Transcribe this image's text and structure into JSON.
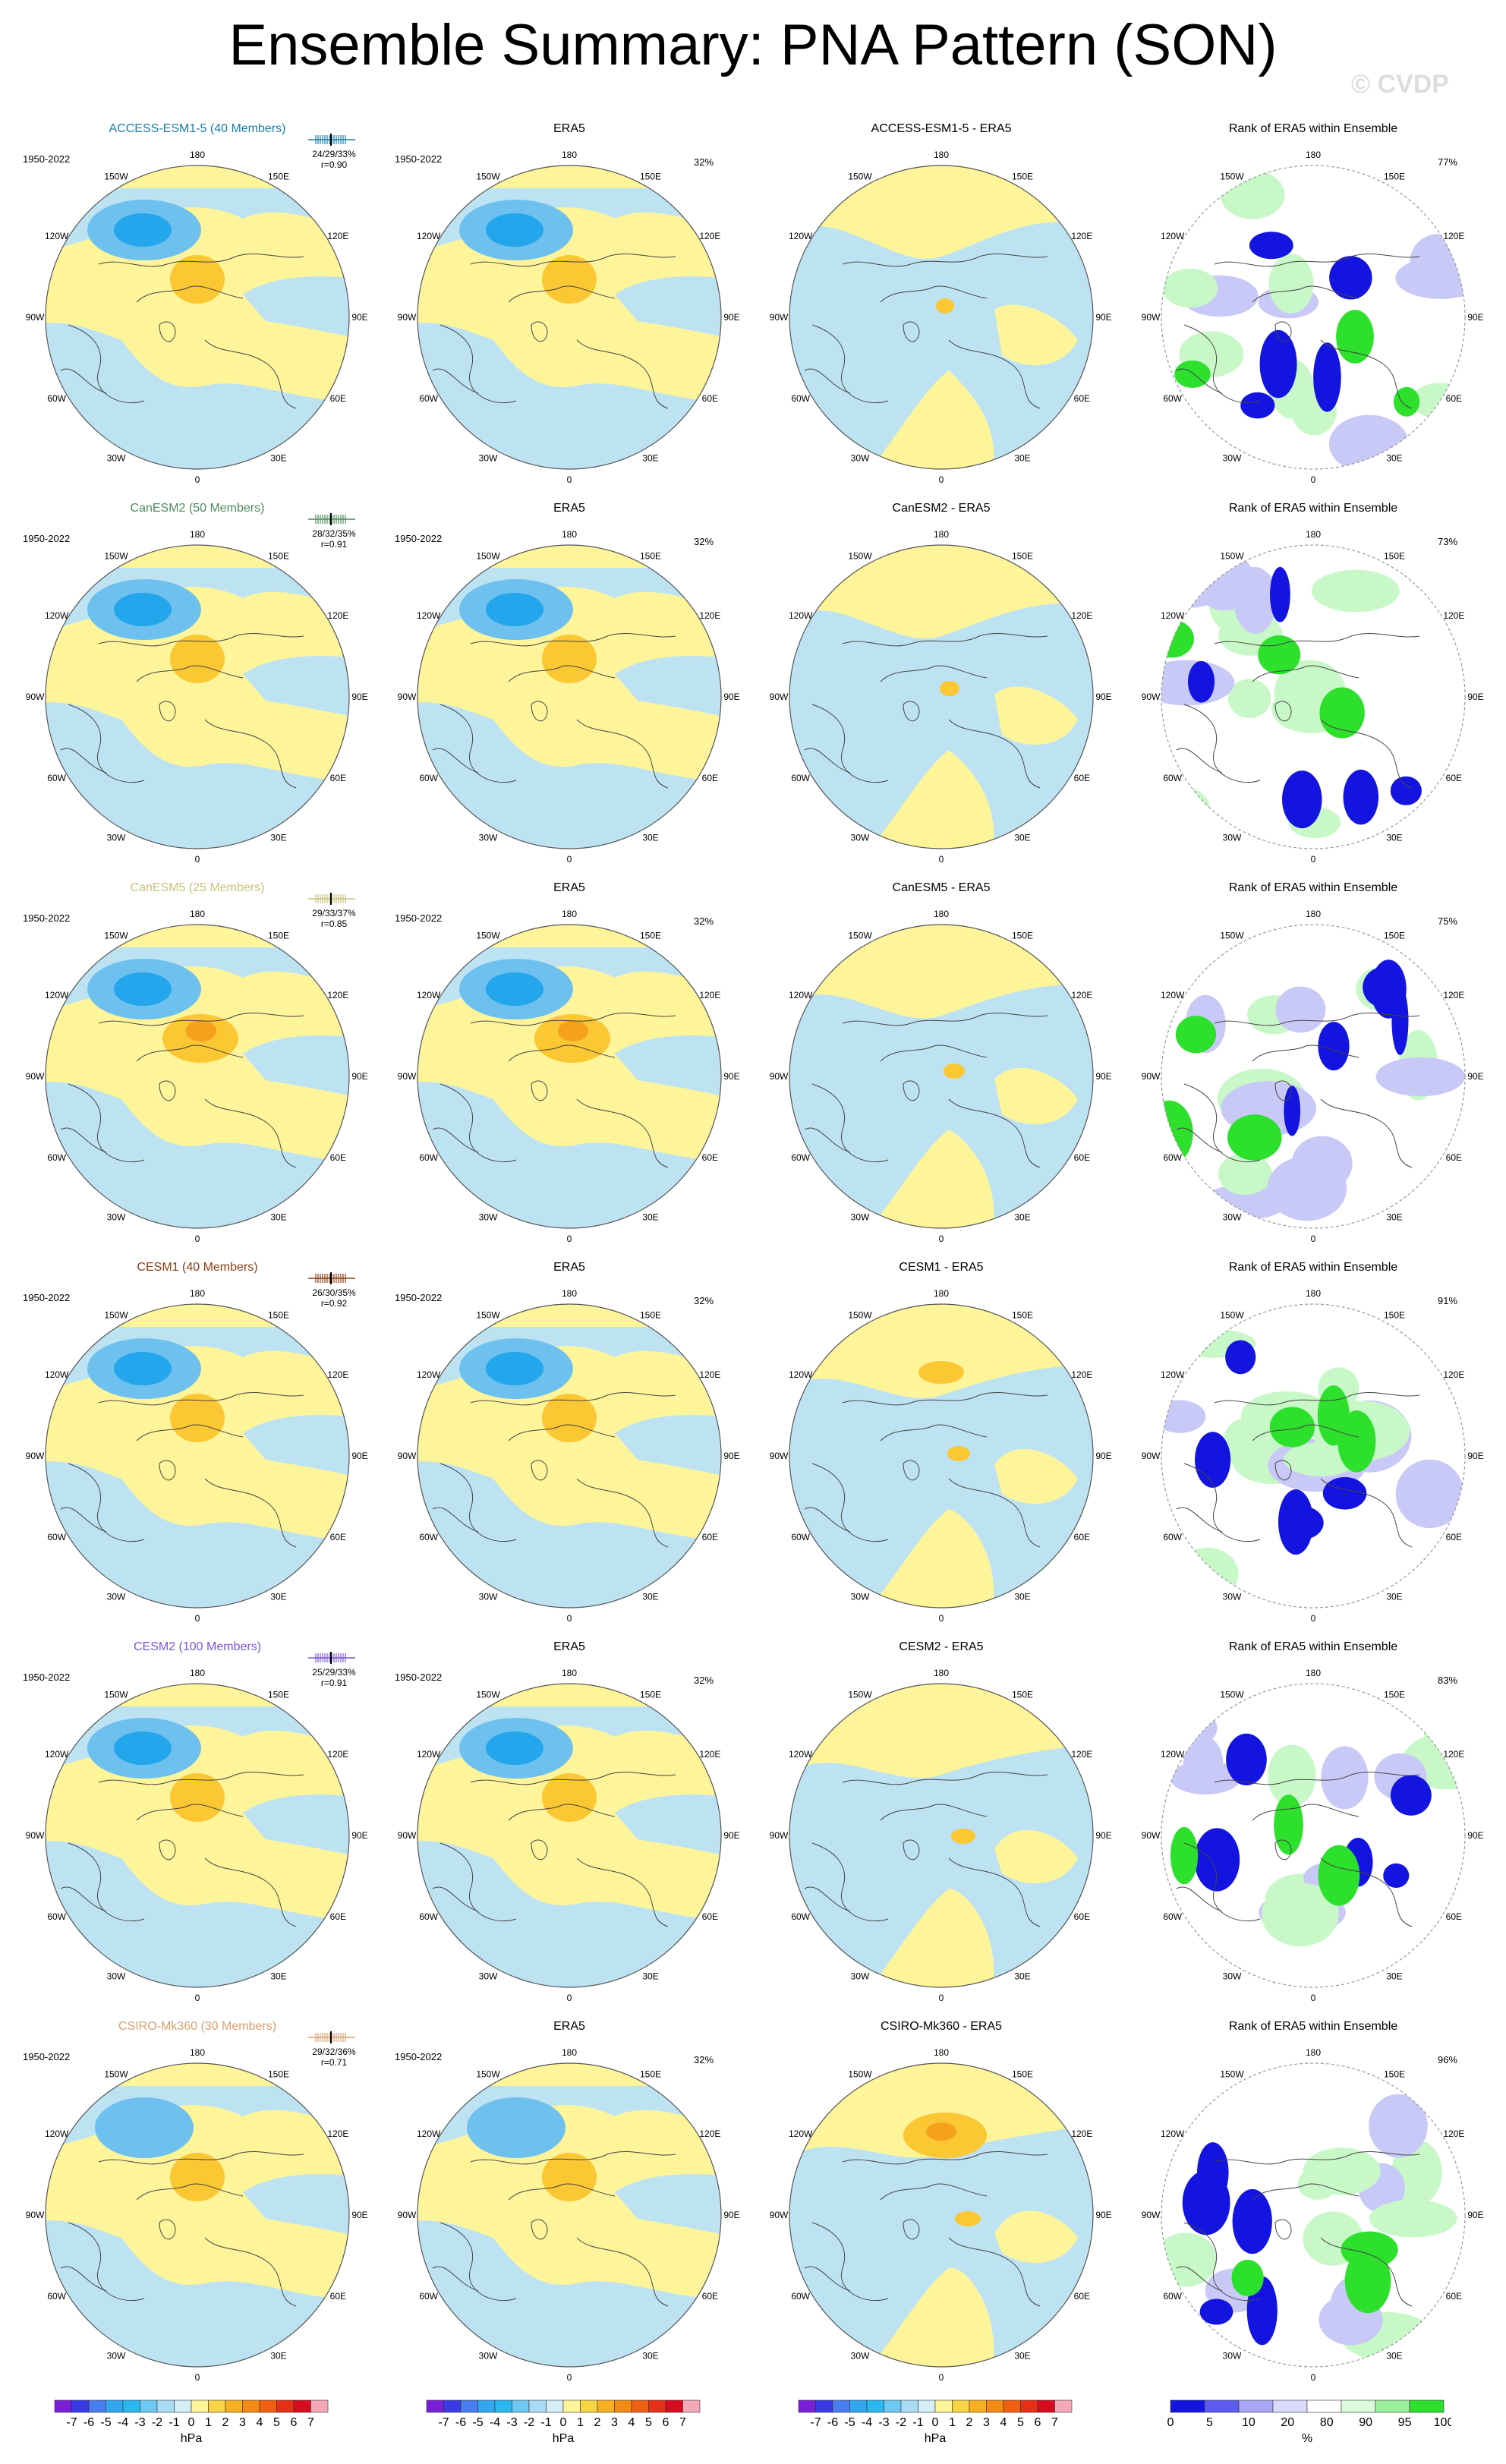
{
  "title": "Ensemble Summary: PNA Pattern (SON)",
  "watermark": "© CVDP",
  "period": "1950-2022",
  "era5_label": "ERA5",
  "era5_pct": "32%",
  "rank_title": "Rank of ERA5 within Ensemble",
  "lon_labels": [
    "180",
    "150E",
    "120E",
    "90E",
    "60E",
    "30E",
    "0",
    "30W",
    "60W",
    "90W",
    "120W",
    "150W"
  ],
  "colors": {
    "pos_light": "#fef49a",
    "pos_mid": "#fbc733",
    "pos_dark": "#f5a11b",
    "neg_light": "#bde3f3",
    "neg_mid": "#6ec1ee",
    "neg_dark": "#23a6eb",
    "rank_blue_dark": "#1414e0",
    "rank_blue_mid": "#5c5cf0",
    "rank_blue_light": "#c9c9f8",
    "rank_green_dark": "#2ce02c",
    "rank_green_light": "#c8f8c8"
  },
  "rows": [
    {
      "model": "ACCESS-ESM1-5 (40 Members)",
      "model_color": "#1a7ea8",
      "stats": "24/29/33%",
      "r": "r=0.90",
      "diff": "ACCESS-ESM1-5 - ERA5",
      "rank_pct": "77%"
    },
    {
      "model": "CanESM2 (50 Members)",
      "model_color": "#4d8a5a",
      "stats": "28/32/35%",
      "r": "r=0.91",
      "diff": "CanESM2 - ERA5",
      "rank_pct": "73%"
    },
    {
      "model": "CanESM5 (25 Members)",
      "model_color": "#c9c27a",
      "stats": "29/33/37%",
      "r": "r=0.85",
      "diff": "CanESM5 - ERA5",
      "rank_pct": "75%"
    },
    {
      "model": "CESM1 (40 Members)",
      "model_color": "#8a3d12",
      "stats": "26/30/35%",
      "r": "r=0.92",
      "diff": "CESM1 - ERA5",
      "rank_pct": "91%"
    },
    {
      "model": "CESM2 (100 Members)",
      "model_color": "#7a55d6",
      "stats": "25/29/33%",
      "r": "r=0.91",
      "diff": "CESM2 - ERA5",
      "rank_pct": "83%"
    },
    {
      "model": "CSIRO-Mk360 (30 Members)",
      "model_color": "#d9a070",
      "stats": "29/32/36%",
      "r": "r=0.71",
      "diff": "CSIRO-Mk360 - ERA5",
      "rank_pct": "96%"
    }
  ],
  "colorbar_hpa": {
    "labels": [
      "-7",
      "-6",
      "-5",
      "-4",
      "-3",
      "-2",
      "-1",
      "0",
      "1",
      "2",
      "3",
      "4",
      "5",
      "6",
      "7"
    ],
    "colors": [
      "#7a1fd8",
      "#3a3ae8",
      "#4a7ef0",
      "#33a6f0",
      "#2ab8f0",
      "#6ec8f4",
      "#a9dcf4",
      "#d5eef8",
      "#fef49a",
      "#fbd444",
      "#f8b020",
      "#f58a12",
      "#f06010",
      "#e83018",
      "#d80c20",
      "#f5a8b8"
    ],
    "unit": "hPa"
  },
  "colorbar_rank": {
    "labels": [
      "0",
      "5",
      "10",
      "20",
      "80",
      "90",
      "95",
      "100"
    ],
    "colors": [
      "#1414e0",
      "#5c5cf0",
      "#a8a8f6",
      "#dadafa",
      "#ffffff",
      "#dcfadc",
      "#9cf09c",
      "#2ce02c"
    ],
    "unit": "%"
  }
}
